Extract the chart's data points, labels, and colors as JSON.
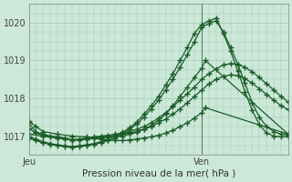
{
  "xlabel": "Pression niveau de la mer( hPa )",
  "background_color": "#cce8d8",
  "grid_color": "#a0c8b0",
  "line_color": "#1a5c28",
  "ylim": [
    1016.5,
    1020.5
  ],
  "xlim": [
    0,
    36
  ],
  "x_ticks_pos": [
    0,
    24,
    36
  ],
  "x_tick_labels": [
    "Jeu",
    "Ven",
    ""
  ],
  "y_ticks": [
    1017,
    1018,
    1019,
    1020
  ],
  "ven_x": 24,
  "series": [
    {
      "x": [
        0,
        1,
        2,
        3,
        4,
        5,
        6,
        7,
        8,
        9,
        10,
        11,
        12,
        13,
        14,
        15,
        16,
        17,
        18,
        19,
        20,
        21,
        22,
        23,
        24,
        25,
        26,
        27,
        28,
        29,
        30,
        31,
        32,
        33,
        34,
        35,
        36
      ],
      "y": [
        1017.35,
        1017.1,
        1017.05,
        1017.0,
        1016.98,
        1016.95,
        1016.9,
        1016.92,
        1016.95,
        1016.98,
        1017.0,
        1017.02,
        1017.05,
        1017.08,
        1017.12,
        1017.18,
        1017.25,
        1017.35,
        1017.48,
        1017.62,
        1017.78,
        1017.95,
        1018.12,
        1018.3,
        1018.5,
        1018.65,
        1018.78,
        1018.88,
        1018.92,
        1018.9,
        1018.82,
        1018.7,
        1018.55,
        1018.38,
        1018.22,
        1018.05,
        1017.9
      ]
    },
    {
      "x": [
        0,
        1,
        2,
        3,
        4,
        5,
        6,
        7,
        8,
        9,
        10,
        11,
        12,
        13,
        14,
        15,
        16,
        17,
        18,
        19,
        20,
        21,
        22,
        23,
        24,
        25,
        26,
        27,
        28,
        29,
        30,
        31,
        32,
        33,
        34,
        35,
        36
      ],
      "y": [
        1017.2,
        1017.08,
        1017.02,
        1016.98,
        1016.95,
        1016.92,
        1016.9,
        1016.9,
        1016.92,
        1016.95,
        1016.98,
        1017.0,
        1017.02,
        1017.05,
        1017.08,
        1017.12,
        1017.18,
        1017.25,
        1017.35,
        1017.45,
        1017.58,
        1017.72,
        1017.88,
        1018.05,
        1018.22,
        1018.38,
        1018.5,
        1018.58,
        1018.62,
        1018.6,
        1018.52,
        1018.4,
        1018.25,
        1018.1,
        1017.95,
        1017.8,
        1017.7
      ]
    },
    {
      "x": [
        0,
        2,
        4,
        6,
        8,
        10,
        12,
        13,
        14,
        15,
        16,
        17,
        18,
        19,
        20,
        21,
        22,
        23,
        24,
        24.5,
        36
      ],
      "y": [
        1017.05,
        1017.0,
        1016.95,
        1016.9,
        1016.92,
        1016.95,
        1016.98,
        1017.0,
        1017.05,
        1017.1,
        1017.18,
        1017.28,
        1017.42,
        1017.58,
        1017.8,
        1018.05,
        1018.3,
        1018.55,
        1018.8,
        1019.0,
        1017.05
      ]
    },
    {
      "x": [
        0,
        1,
        2,
        3,
        4,
        5,
        6,
        7,
        8,
        9,
        10,
        11,
        12,
        13,
        14,
        15,
        16,
        17,
        18,
        19,
        20,
        21,
        22,
        23,
        24,
        25,
        26,
        27,
        28,
        29,
        30,
        31,
        32,
        33,
        34,
        35,
        36
      ],
      "y": [
        1016.95,
        1016.88,
        1016.82,
        1016.78,
        1016.75,
        1016.72,
        1016.7,
        1016.72,
        1016.75,
        1016.78,
        1016.82,
        1016.88,
        1016.95,
        1017.05,
        1017.18,
        1017.32,
        1017.5,
        1017.72,
        1017.95,
        1018.22,
        1018.5,
        1018.82,
        1019.15,
        1019.5,
        1019.88,
        1019.98,
        1020.05,
        1019.75,
        1019.35,
        1018.9,
        1018.4,
        1017.88,
        1017.5,
        1017.25,
        1017.12,
        1017.05,
        1017.02
      ]
    },
    {
      "x": [
        0,
        1,
        2,
        3,
        4,
        5,
        6,
        7,
        8,
        9,
        10,
        11,
        12,
        13,
        14,
        15,
        16,
        17,
        18,
        19,
        20,
        21,
        22,
        23,
        24,
        25,
        26,
        27,
        28,
        29,
        30,
        31,
        32,
        33,
        34,
        35,
        36
      ],
      "y": [
        1016.98,
        1016.92,
        1016.85,
        1016.8,
        1016.77,
        1016.74,
        1016.72,
        1016.74,
        1016.77,
        1016.8,
        1016.85,
        1016.92,
        1017.0,
        1017.1,
        1017.22,
        1017.38,
        1017.58,
        1017.8,
        1018.05,
        1018.35,
        1018.65,
        1019.0,
        1019.35,
        1019.72,
        1019.95,
        1020.05,
        1020.12,
        1019.72,
        1019.25,
        1018.72,
        1018.18,
        1017.68,
        1017.3,
        1017.08,
        1017.0,
        1016.98,
        1016.98
      ]
    },
    {
      "x": [
        0,
        1,
        2,
        4,
        6,
        8,
        9,
        10,
        11,
        12,
        13,
        14,
        15,
        16,
        17,
        18,
        19,
        20,
        21,
        22,
        23,
        24,
        24.5,
        36
      ],
      "y": [
        1017.4,
        1017.25,
        1017.12,
        1017.05,
        1017.0,
        1016.98,
        1016.95,
        1016.92,
        1016.9,
        1016.88,
        1016.88,
        1016.9,
        1016.92,
        1016.95,
        1016.98,
        1017.02,
        1017.08,
        1017.15,
        1017.25,
        1017.35,
        1017.48,
        1017.62,
        1017.75,
        1017.05
      ]
    }
  ]
}
